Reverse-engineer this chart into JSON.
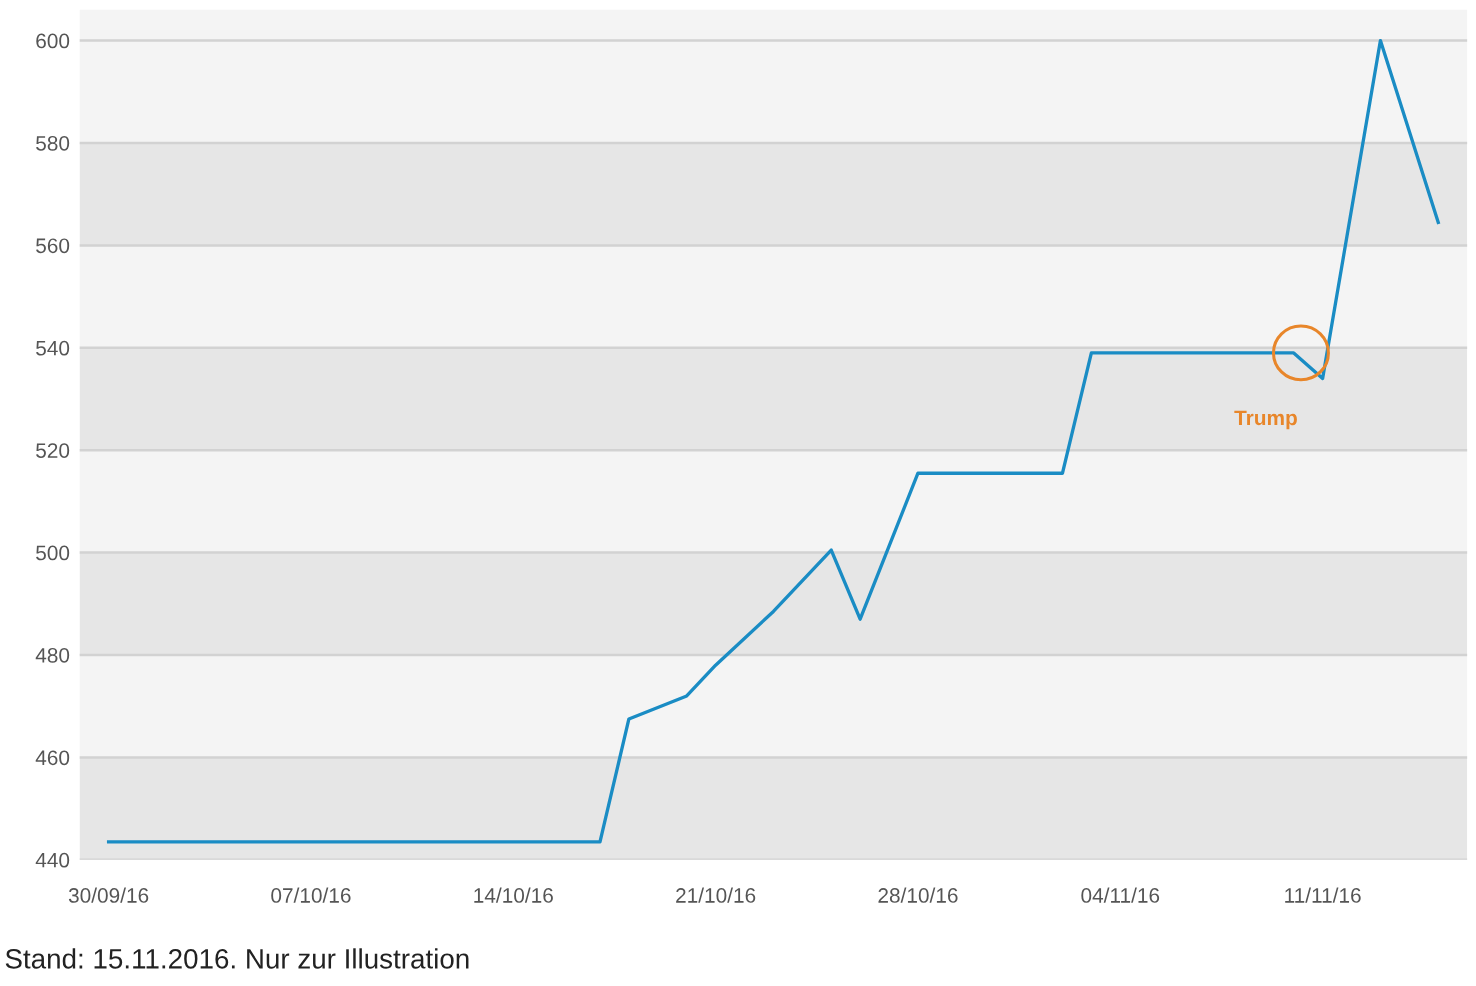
{
  "chart_data": {
    "type": "line",
    "x": [
      "2016-09-30",
      "2016-10-17",
      "2016-10-18",
      "2016-10-20",
      "2016-10-21",
      "2016-10-23",
      "2016-10-25",
      "2016-10-26",
      "2016-10-28",
      "2016-11-02",
      "2016-11-03",
      "2016-11-10",
      "2016-11-11",
      "2016-11-13",
      "2016-11-15"
    ],
    "series": [
      {
        "color": "#1a8cc4",
        "values": [
          443.5,
          443.5,
          467.5,
          472,
          478,
          488.5,
          500.5,
          487,
          515.5,
          515.5,
          539,
          539,
          534,
          600,
          564.5
        ]
      }
    ],
    "xlim": [
      "2016-09-29",
      "2016-11-16"
    ],
    "xticks": [
      {
        "value": "2016-09-30",
        "label": "30/09/16"
      },
      {
        "value": "2016-10-07",
        "label": "07/10/16"
      },
      {
        "value": "2016-10-14",
        "label": "14/10/16"
      },
      {
        "value": "2016-10-21",
        "label": "21/10/16"
      },
      {
        "value": "2016-10-28",
        "label": "28/10/16"
      },
      {
        "value": "2016-11-04",
        "label": "04/11/16"
      },
      {
        "value": "2016-11-11",
        "label": "11/11/16"
      }
    ],
    "ylim": [
      440,
      606
    ],
    "yticks": [
      440,
      460,
      480,
      500,
      520,
      540,
      560,
      580,
      600
    ],
    "grid": "y",
    "marker": "none",
    "line_style": "solid",
    "bands": [
      {
        "axis": "y",
        "from": 440,
        "to": 460,
        "color": "#e6e6e6"
      },
      {
        "axis": "y",
        "from": 480,
        "to": 500,
        "color": "#e6e6e6"
      },
      {
        "axis": "y",
        "from": 520,
        "to": 540,
        "color": "#e6e6e6"
      },
      {
        "axis": "y",
        "from": 560,
        "to": 580,
        "color": "#e6e6e6"
      }
    ],
    "annotations": [
      {
        "text": "Trump",
        "x": "2016-11-10",
        "y": 539
      },
      "Stand: 15.11.2016. Nur zur Illustration"
    ]
  }
}
